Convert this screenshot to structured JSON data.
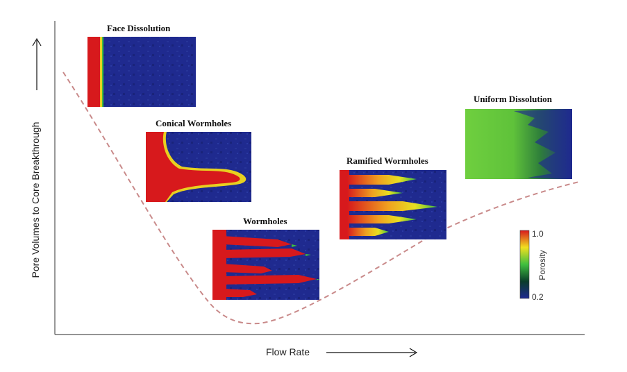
{
  "axes": {
    "x_label": "Flow Rate",
    "y_label": "Pore Volumes to Core Breakthrough"
  },
  "panels": [
    {
      "id": "face",
      "title": "Face Dissolution"
    },
    {
      "id": "conical",
      "title": "Conical Wormholes"
    },
    {
      "id": "wormholes",
      "title": "Wormholes"
    },
    {
      "id": "ramified",
      "title": "Ramified Wormholes"
    },
    {
      "id": "uniform",
      "title": "Uniform Dissolution"
    }
  ],
  "colorbar": {
    "label": "Porosity",
    "max_label": "1.0",
    "min_label": "0.2",
    "colors": [
      "#d7191c",
      "#f0e020",
      "#3fbf3f",
      "#0a3d2a",
      "#1f2a8f"
    ]
  },
  "colors": {
    "curve": "#c98a8a",
    "low_porosity": "#1f2a8f",
    "high_porosity": "#d7191c",
    "mid_porosity": "#6fcf3f"
  }
}
